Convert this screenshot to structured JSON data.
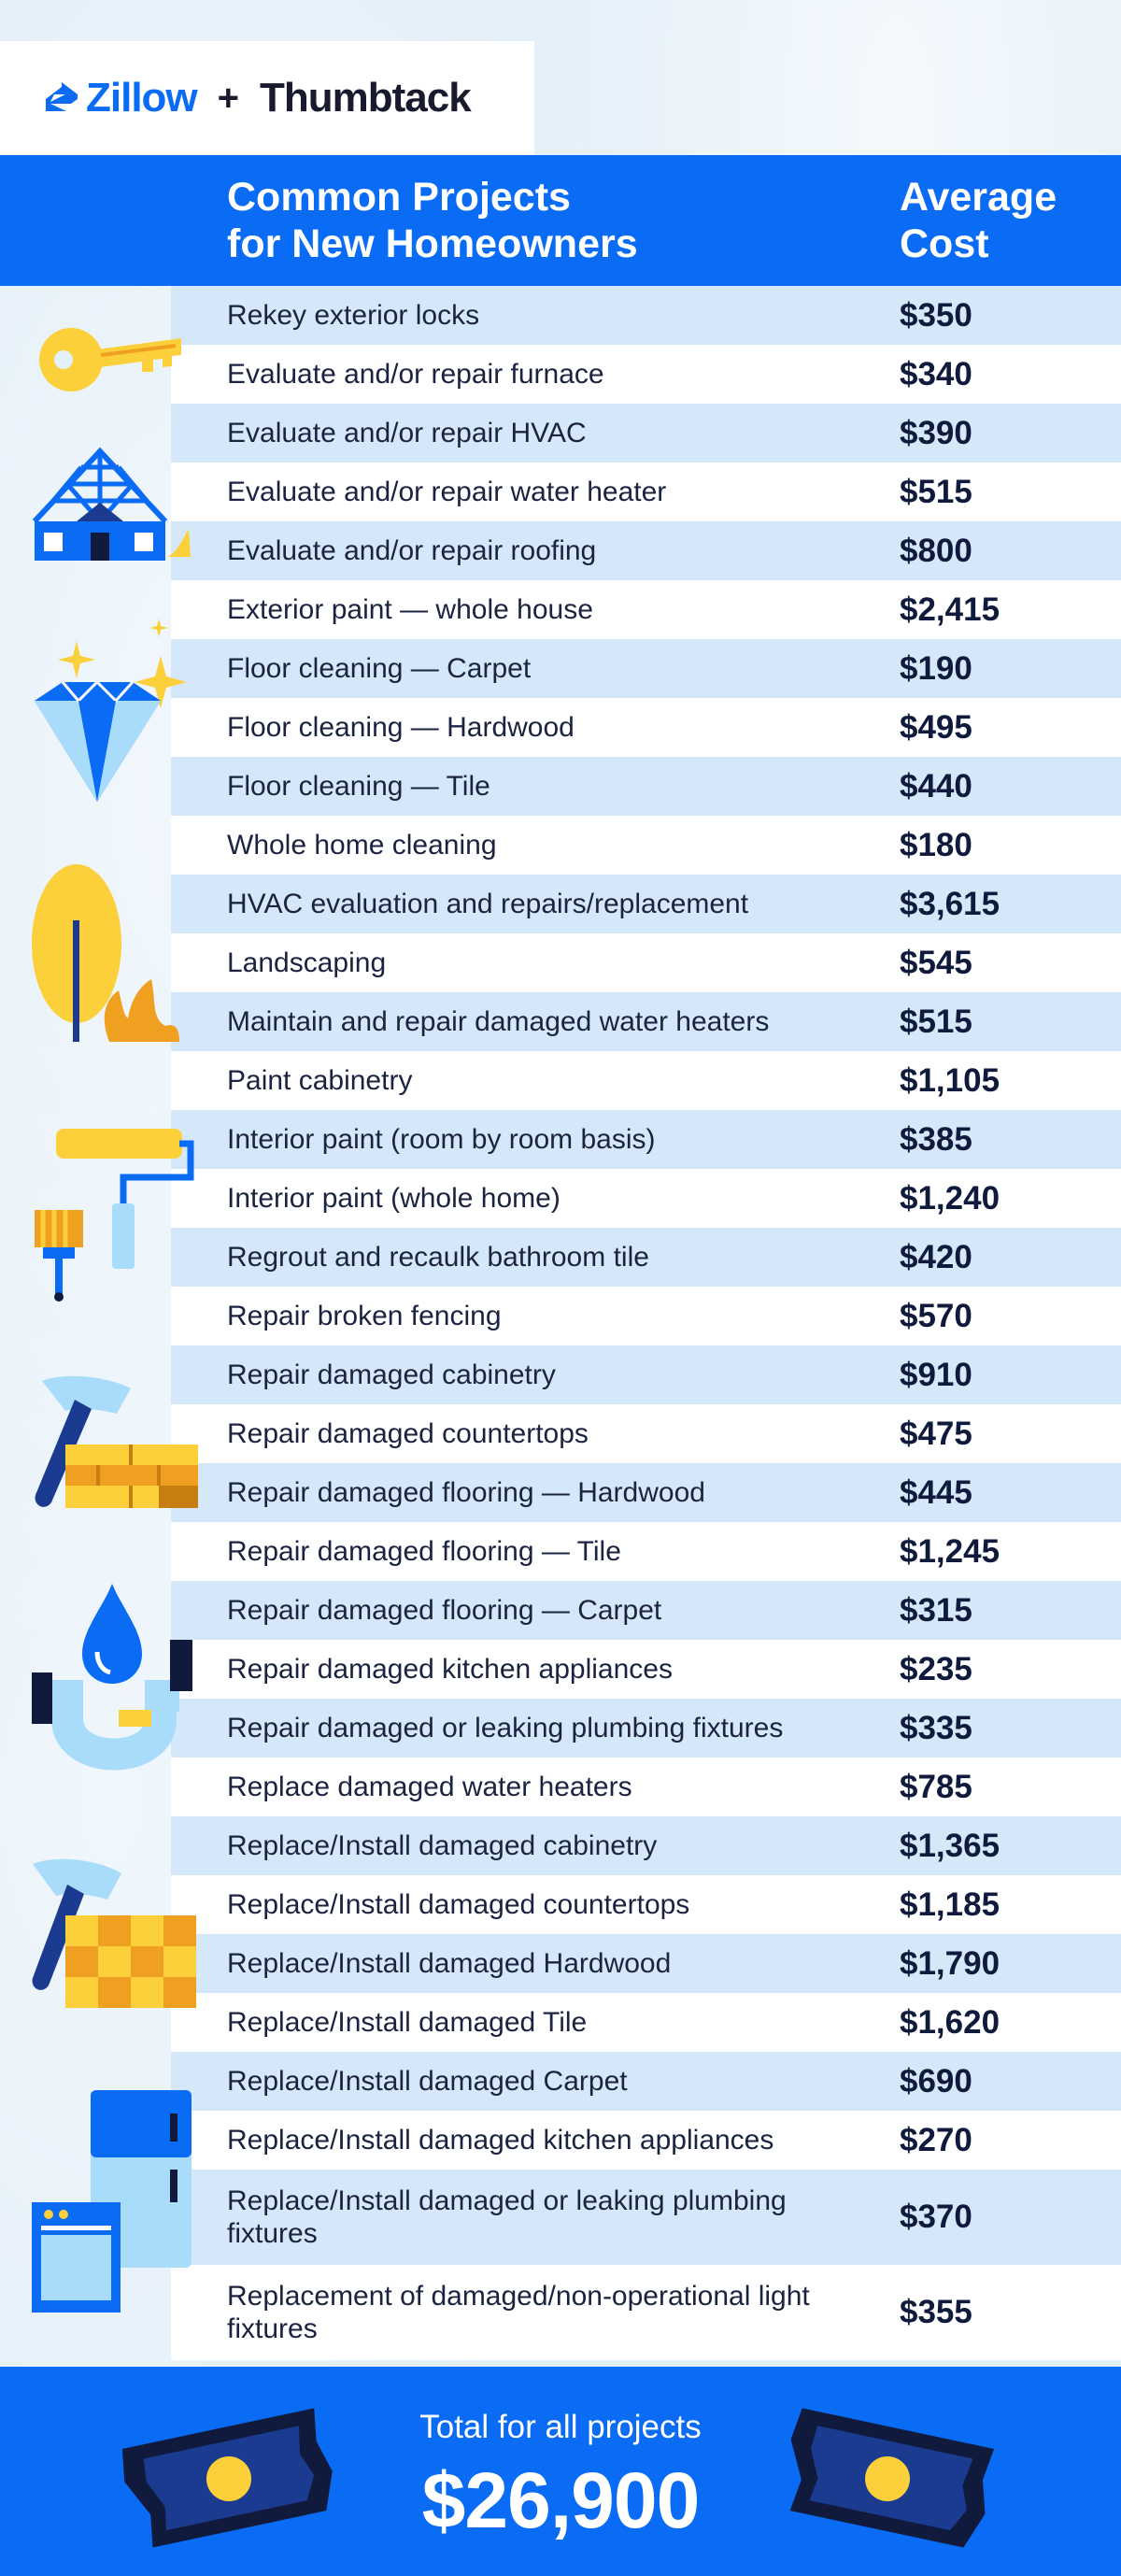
{
  "brand": {
    "zillow": "Zillow",
    "plus": "+",
    "thumbtack": "Thumbtack"
  },
  "header": {
    "title_line1": "Common Projects",
    "title_line2": "for New Homeowners",
    "cost_line1": "Average",
    "cost_line2": "Cost"
  },
  "projects": [
    {
      "name": "Rekey exterior locks",
      "cost": "$350"
    },
    {
      "name": "Evaluate and/or repair furnace",
      "cost": "$340"
    },
    {
      "name": "Evaluate and/or repair HVAC",
      "cost": "$390"
    },
    {
      "name": "Evaluate and/or repair water heater",
      "cost": "$515"
    },
    {
      "name": "Evaluate and/or repair roofing",
      "cost": "$800"
    },
    {
      "name": "Exterior paint — whole house",
      "cost": "$2,415"
    },
    {
      "name": "Floor cleaning — Carpet",
      "cost": "$190"
    },
    {
      "name": "Floor cleaning — Hardwood",
      "cost": "$495"
    },
    {
      "name": "Floor cleaning — Tile",
      "cost": "$440"
    },
    {
      "name": "Whole home cleaning",
      "cost": "$180"
    },
    {
      "name": "HVAC evaluation and repairs/replacement",
      "cost": "$3,615"
    },
    {
      "name": "Landscaping",
      "cost": "$545"
    },
    {
      "name": "Maintain and repair damaged water heaters",
      "cost": "$515"
    },
    {
      "name": "Paint cabinetry",
      "cost": "$1,105"
    },
    {
      "name": "Interior paint (room by room basis)",
      "cost": "$385"
    },
    {
      "name": "Interior paint (whole home)",
      "cost": "$1,240"
    },
    {
      "name": "Regrout and recaulk bathroom tile",
      "cost": "$420"
    },
    {
      "name": "Repair broken fencing",
      "cost": "$570"
    },
    {
      "name": "Repair damaged cabinetry",
      "cost": "$910"
    },
    {
      "name": "Repair damaged countertops",
      "cost": "$475"
    },
    {
      "name": "Repair damaged flooring — Hardwood",
      "cost": "$445"
    },
    {
      "name": "Repair damaged flooring —  Tile",
      "cost": "$1,245"
    },
    {
      "name": "Repair damaged flooring — Carpet",
      "cost": "$315"
    },
    {
      "name": "Repair damaged kitchen appliances",
      "cost": "$235"
    },
    {
      "name": "Repair damaged or leaking plumbing fixtures",
      "cost": "$335"
    },
    {
      "name": "Replace damaged water heaters",
      "cost": "$785"
    },
    {
      "name": "Replace/Install damaged cabinetry",
      "cost": "$1,365"
    },
    {
      "name": "Replace/Install damaged countertops",
      "cost": "$1,185"
    },
    {
      "name": "Replace/Install damaged Hardwood",
      "cost": "$1,790"
    },
    {
      "name": "Replace/Install damaged Tile",
      "cost": "$1,620"
    },
    {
      "name": "Replace/Install damaged Carpet",
      "cost": "$690"
    },
    {
      "name": "Replace/Install damaged kitchen appliances",
      "cost": "$270"
    },
    {
      "name": "Replace/Install damaged or leaking plumbing fixtures",
      "cost": "$370"
    },
    {
      "name": "Replacement of damaged/non-operational light fixtures",
      "cost": "$355"
    }
  ],
  "footer": {
    "label": "Total for all projects",
    "total": "$26,900"
  },
  "colors": {
    "brand_blue": "#0a6cf5",
    "navy": "#101a3c",
    "yellow": "#fcd03b",
    "light_blue": "#a9dcfb"
  },
  "illustrations": [
    "key-icon",
    "house-frame-icon",
    "diamond-icon",
    "tree-icon",
    "paint-roller-icon",
    "hammer-bricks-icon",
    "water-drop-pipe-icon",
    "hammer-tiles-icon",
    "fridge-oven-icon",
    "money-bill-icon"
  ]
}
